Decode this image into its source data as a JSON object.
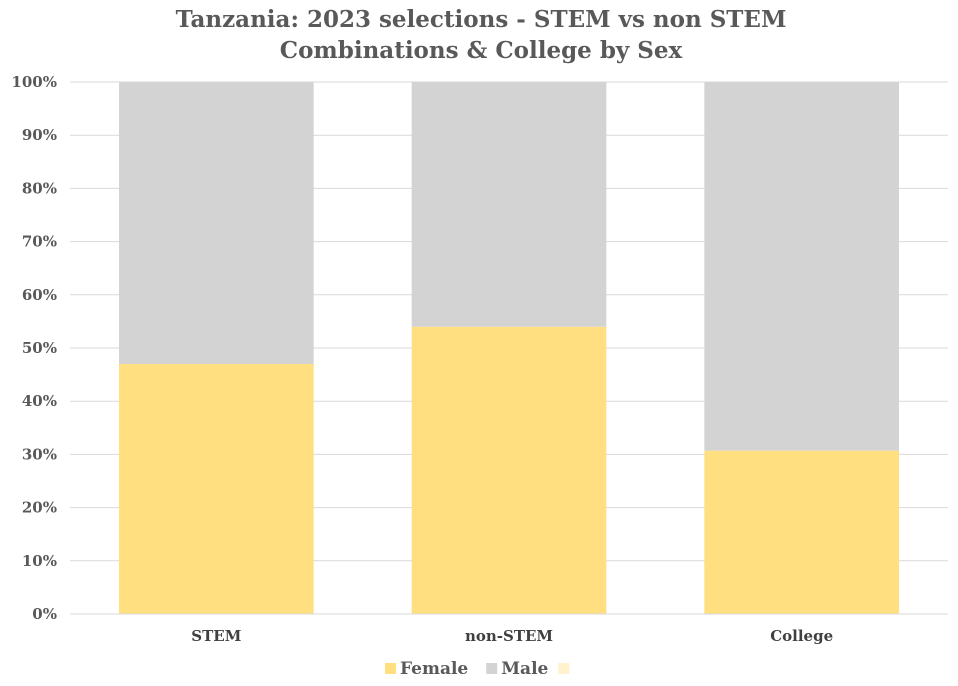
{
  "chart_data": {
    "type": "bar",
    "stacked": true,
    "normalized_percent": true,
    "title_lines": [
      "Tanzania: 2023 selections - STEM vs non STEM",
      "Combinations  & College by Sex"
    ],
    "categories": [
      "STEM",
      "non-STEM",
      "College"
    ],
    "series": [
      {
        "name": "Female",
        "values": [
          47,
          54,
          30.7
        ],
        "color": "#FFDF80"
      },
      {
        "name": "Male",
        "values": [
          53,
          46,
          69.3
        ],
        "color": "#D3D3D3"
      }
    ],
    "legend_extra_swatch_color": "#FFF2CC",
    "ylim": [
      0,
      100
    ],
    "y_ticks": [
      "0%",
      "10%",
      "20%",
      "30%",
      "40%",
      "50%",
      "60%",
      "70%",
      "80%",
      "90%",
      "100%"
    ],
    "grid": true,
    "legend_position": "bottom",
    "xlabel": "",
    "ylabel": ""
  }
}
